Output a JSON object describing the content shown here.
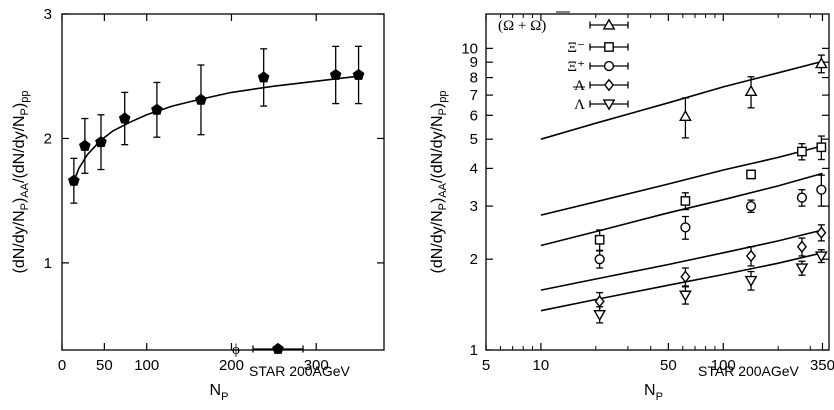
{
  "chart_data": [
    {
      "type": "scatter",
      "xlabel_main": "N",
      "xlabel_sub": "P",
      "ylabel": "(dN/dy/NP)AA/(dN/dy/NP)pp",
      "xlim": [
        0,
        380
      ],
      "ylim": [
        0.3,
        3
      ],
      "x_scale": "linear",
      "y_scale": "linear",
      "x_ticks": [
        0,
        50,
        100,
        200,
        300
      ],
      "y_ticks": [
        1,
        2,
        3
      ],
      "annotation": "STAR 200AGeV",
      "series": [
        {
          "name": "ϕ",
          "marker": "pentagon-filled",
          "x": [
            14,
            27,
            46,
            74,
            112,
            164,
            238,
            323,
            350
          ],
          "y": [
            1.66,
            1.94,
            1.97,
            2.16,
            2.23,
            2.31,
            2.49,
            2.51,
            2.51
          ],
          "yerr": [
            0.18,
            0.22,
            0.22,
            0.21,
            0.22,
            0.28,
            0.23,
            0.23,
            0.23
          ],
          "xerr": [
            3,
            4,
            5,
            6,
            8,
            10,
            10,
            10,
            10
          ]
        }
      ],
      "curve": {
        "x": [
          12,
          20,
          30,
          45,
          60,
          80,
          100,
          130,
          160,
          200,
          250,
          300,
          350
        ],
        "y": [
          1.62,
          1.76,
          1.87,
          1.98,
          2.06,
          2.13,
          2.19,
          2.26,
          2.31,
          2.37,
          2.42,
          2.46,
          2.5
        ]
      }
    },
    {
      "type": "scatter",
      "xlabel_main": "N",
      "xlabel_sub": "P",
      "ylabel": "(dN/dy/NP)AA/(dN/dy/NP)pp",
      "xlim": [
        5,
        380
      ],
      "ylim": [
        1,
        13
      ],
      "x_scale": "log",
      "y_scale": "log",
      "x_ticks": [
        5,
        10,
        50,
        100,
        350
      ],
      "y_ticks": [
        1,
        2,
        3,
        4,
        5,
        6,
        7,
        8,
        9,
        10
      ],
      "annotation": "STAR 200AGeV",
      "series": [
        {
          "name": "(Ω + Ω)",
          "marker": "triangle-up",
          "x": [
            62,
            142,
            345
          ],
          "y": [
            5.95,
            7.2,
            8.9
          ],
          "yerr": [
            0.9,
            0.85,
            0.6
          ],
          "xerr": [
            4,
            8,
            14
          ]
        },
        {
          "name": "Ξ⁻",
          "marker": "square",
          "x": [
            21,
            62,
            142,
            270,
            345
          ],
          "y": [
            2.32,
            3.12,
            3.82,
            4.55,
            4.7
          ],
          "yerr": [
            0.18,
            0.2,
            0.12,
            0.28,
            0.42
          ],
          "xerr": [
            2,
            4,
            8,
            14,
            16
          ]
        },
        {
          "name": "Ξ⁺",
          "marker": "circle",
          "x": [
            21,
            62,
            142,
            270,
            345
          ],
          "y": [
            2.0,
            2.55,
            3.0,
            3.2,
            3.4
          ],
          "yerr": [
            0.13,
            0.22,
            0.14,
            0.2,
            0.4
          ],
          "xerr": [
            2,
            4,
            8,
            14,
            16
          ]
        },
        {
          "name": "Λ",
          "marker": "diamond",
          "x": [
            21,
            62,
            142,
            270,
            345
          ],
          "y": [
            1.45,
            1.75,
            2.05,
            2.2,
            2.45
          ],
          "yerr": [
            0.1,
            0.12,
            0.15,
            0.15,
            0.15
          ],
          "xerr": [
            2,
            4,
            8,
            14,
            16
          ]
        },
        {
          "name": "Λ",
          "marker": "triangle-down",
          "x": [
            21,
            62,
            142,
            270,
            345
          ],
          "y": [
            1.31,
            1.52,
            1.7,
            1.87,
            2.05
          ],
          "yerr": [
            0.08,
            0.1,
            0.12,
            0.1,
            0.1
          ],
          "xerr": [
            2,
            4,
            8,
            14,
            16
          ]
        }
      ],
      "curves": [
        {
          "x": [
            10,
            20,
            50,
            100,
            200,
            350
          ],
          "y": [
            5.0,
            5.65,
            6.6,
            7.45,
            8.3,
            9.05
          ]
        },
        {
          "x": [
            10,
            20,
            50,
            100,
            200,
            350
          ],
          "y": [
            2.8,
            3.1,
            3.55,
            3.95,
            4.35,
            4.75
          ]
        },
        {
          "x": [
            10,
            20,
            50,
            100,
            200,
            350
          ],
          "y": [
            2.22,
            2.47,
            2.85,
            3.15,
            3.5,
            3.85
          ]
        },
        {
          "x": [
            10,
            20,
            50,
            100,
            200,
            350
          ],
          "y": [
            1.58,
            1.72,
            1.92,
            2.1,
            2.3,
            2.5
          ]
        },
        {
          "x": [
            10,
            20,
            50,
            100,
            200,
            350
          ],
          "y": [
            1.35,
            1.47,
            1.64,
            1.78,
            1.94,
            2.1
          ]
        }
      ]
    }
  ]
}
